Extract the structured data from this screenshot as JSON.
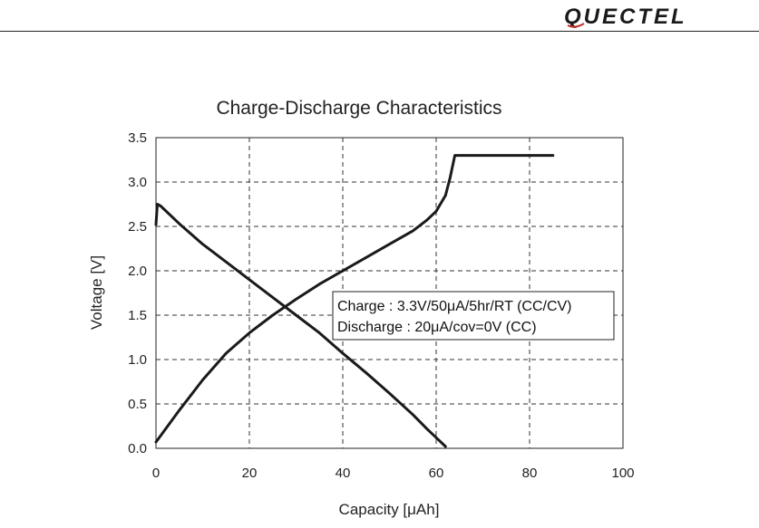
{
  "header": {
    "logo_text": "QUECTEL",
    "logo_color": "#1a1a1a",
    "logo_accent_color": "#c0312b"
  },
  "chart_data": {
    "type": "line",
    "title": "Charge-Discharge Characteristics",
    "xlabel": "Capacity [μAh]",
    "ylabel": "Voltage [V]",
    "xlim": [
      0,
      100
    ],
    "ylim": [
      0,
      3.5
    ],
    "x_ticks": [
      0,
      20,
      40,
      60,
      80,
      100
    ],
    "y_ticks": [
      "0.0",
      "0.5",
      "1.0",
      "1.5",
      "2.0",
      "2.5",
      "3.0",
      "3.5"
    ],
    "grid": true,
    "grid_style": "dashed",
    "legend_lines": [
      "Charge : 3.3V/50μA/5hr/RT (CC/CV)",
      "Discharge : 20μA/cov=0V (CC)"
    ],
    "series": [
      {
        "x": [
          0,
          5,
          10,
          15,
          20,
          25,
          30,
          35,
          40,
          45,
          50,
          55,
          58,
          60,
          62,
          63,
          64,
          70,
          80,
          85
        ],
        "y": [
          0.07,
          0.43,
          0.77,
          1.07,
          1.3,
          1.5,
          1.68,
          1.85,
          2.0,
          2.15,
          2.3,
          2.45,
          2.57,
          2.67,
          2.85,
          3.05,
          3.3,
          3.3,
          3.3,
          3.3
        ]
      },
      {
        "x": [
          0,
          0.3,
          1,
          5,
          10,
          15,
          20,
          25,
          30,
          35,
          40,
          45,
          50,
          55,
          58,
          60,
          62
        ],
        "y": [
          2.52,
          2.75,
          2.73,
          2.53,
          2.3,
          2.1,
          1.9,
          1.7,
          1.5,
          1.3,
          1.07,
          0.85,
          0.62,
          0.38,
          0.22,
          0.12,
          0.02
        ]
      }
    ]
  }
}
